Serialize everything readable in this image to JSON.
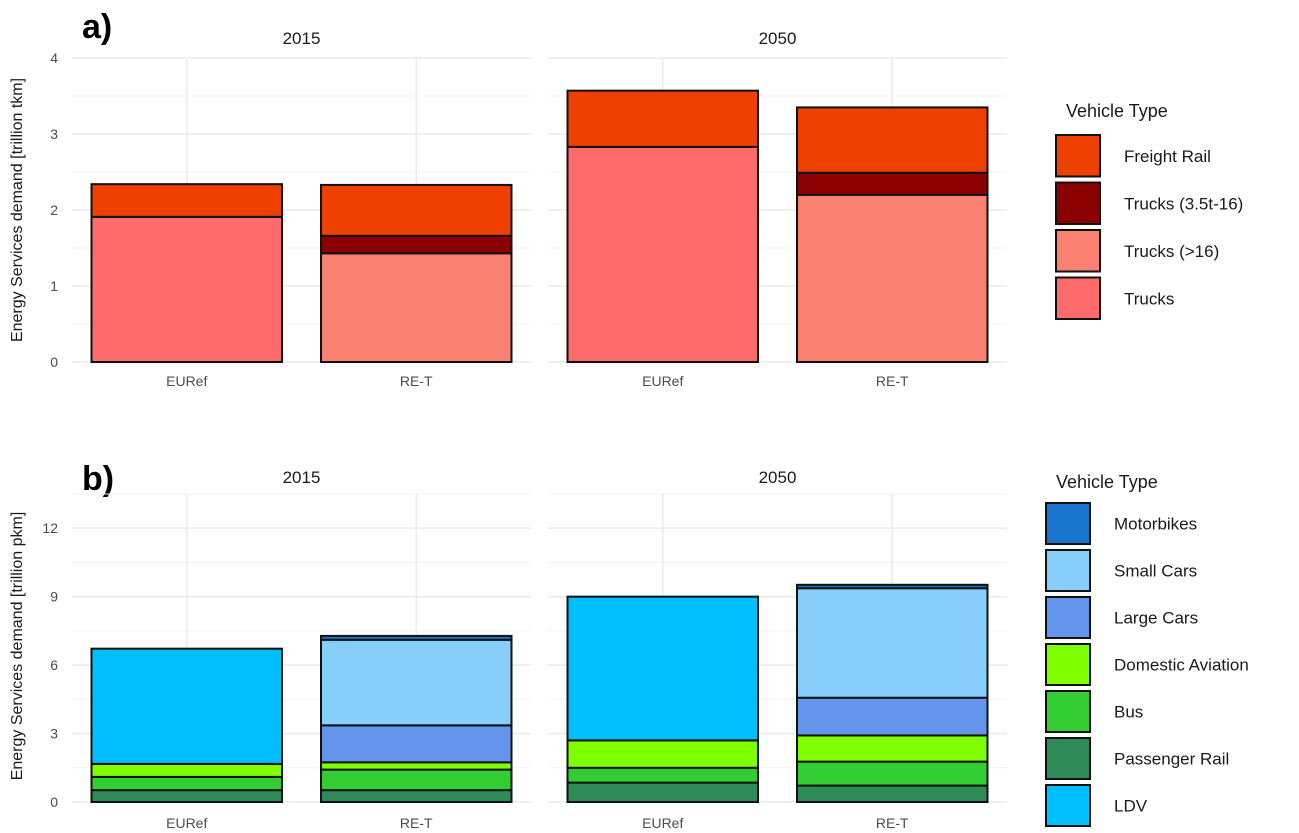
{
  "chart_data": [
    {
      "panel_label": "a)",
      "type": "bar",
      "stacked": true,
      "ylabel": "Energy Services demand [trillion tkm]",
      "ylim": [
        0,
        4
      ],
      "yticks": [
        0,
        1,
        2,
        3,
        4
      ],
      "facets": [
        "2015",
        "2050"
      ],
      "categories": [
        "EURef",
        "RE-T"
      ],
      "legend": {
        "title": "Vehicle Type",
        "placement": "right"
      },
      "series": [
        {
          "name": "Freight Rail",
          "color": "#EE4000",
          "values": {
            "2015": [
              0.43,
              0.67
            ],
            "2050": [
              0.74,
              0.86
            ]
          }
        },
        {
          "name": "Trucks (3.5t-16)",
          "color": "#8B0000",
          "values": {
            "2015": [
              0,
              0.23
            ],
            "2050": [
              0,
              0.29
            ]
          }
        },
        {
          "name": "Trucks (>16)",
          "color": "#FA8072",
          "values": {
            "2015": [
              0,
              1.43
            ],
            "2050": [
              0,
              2.2
            ]
          }
        },
        {
          "name": "Trucks",
          "color": "#FF6A6A",
          "values": {
            "2015": [
              1.91,
              0
            ],
            "2050": [
              2.83,
              0
            ]
          }
        }
      ],
      "legend_order": [
        "Freight Rail",
        "Trucks (3.5t-16)",
        "Trucks (>16)",
        "Trucks"
      ],
      "stack_order_bottom_up": [
        "Trucks",
        "Trucks (>16)",
        "Trucks (3.5t-16)",
        "Freight Rail"
      ],
      "grid": true
    },
    {
      "panel_label": "b)",
      "type": "bar",
      "stacked": true,
      "ylabel": "Energy Services demand [trillion pkm]",
      "ylim": [
        0,
        13.5
      ],
      "yticks": [
        0,
        3,
        6,
        9,
        12
      ],
      "facets": [
        "2015",
        "2050"
      ],
      "categories": [
        "EURef",
        "RE-T"
      ],
      "legend": {
        "title": "Vehicle Type",
        "placement": "right"
      },
      "series": [
        {
          "name": "Motorbikes",
          "color": "#1874CD",
          "values": {
            "2015": [
              0,
              0.17
            ],
            "2050": [
              0,
              0.15
            ]
          }
        },
        {
          "name": "Small Cars",
          "color": "#87CEFA",
          "values": {
            "2015": [
              0,
              3.75
            ],
            "2050": [
              0,
              4.8
            ]
          }
        },
        {
          "name": "Large Cars",
          "color": "#6495ED",
          "values": {
            "2015": [
              0,
              1.62
            ],
            "2050": [
              0,
              1.65
            ]
          }
        },
        {
          "name": "Domestic Aviation",
          "color": "#7FFF00",
          "values": {
            "2015": [
              0.57,
              0.32
            ],
            "2050": [
              1.2,
              1.15
            ]
          }
        },
        {
          "name": "Bus",
          "color": "#32CD32",
          "values": {
            "2015": [
              0.58,
              0.9
            ],
            "2050": [
              0.65,
              1.05
            ]
          }
        },
        {
          "name": "Passenger Rail",
          "color": "#2E8B57",
          "values": {
            "2015": [
              0.52,
              0.52
            ],
            "2050": [
              0.85,
              0.72
            ]
          }
        },
        {
          "name": "LDV",
          "color": "#00BFFF",
          "values": {
            "2015": [
              5.05,
              0
            ],
            "2050": [
              6.3,
              0
            ]
          }
        }
      ],
      "legend_order": [
        "Motorbikes",
        "Small Cars",
        "Large Cars",
        "Domestic Aviation",
        "Bus",
        "Passenger Rail",
        "LDV"
      ],
      "stack_order_bottom_up": [
        "Passenger Rail",
        "Bus",
        "Domestic Aviation",
        "Large Cars",
        "Small Cars",
        "Motorbikes",
        "LDV"
      ],
      "grid": true
    }
  ]
}
